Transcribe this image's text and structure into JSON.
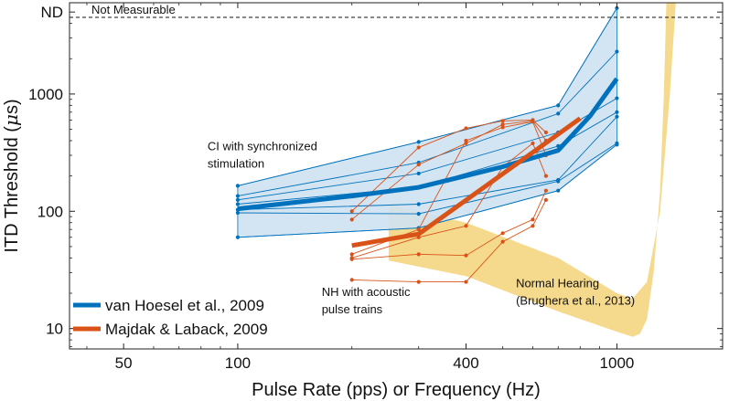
{
  "chart_data": {
    "type": "line",
    "title": "",
    "xlabel": "Pulse Rate (pps) or Frequency (Hz)",
    "ylabel_prefix": "ITD Threshold (",
    "ylabel_mu": "μ",
    "ylabel_suffix": "s)",
    "xscale": "log",
    "yscale": "log",
    "xlim": [
      36,
      1900
    ],
    "ylim": [
      6.7,
      6000
    ],
    "xticks": [
      50,
      100,
      400,
      1000
    ],
    "xtick_labels": [
      "50",
      "100",
      "400",
      "1000"
    ],
    "yticks": [
      10,
      100,
      1000,
      5000
    ],
    "ytick_labels": [
      "10",
      "100",
      "1000",
      "ND"
    ],
    "not_measurable": {
      "value": 4500,
      "label": "Not Measurable"
    },
    "colors": {
      "ci": "#0072bd",
      "ci_band": "#cfe2f1",
      "nh": "#d95319",
      "normal": "#f5d98c"
    },
    "ci_band": {
      "upper": [
        [
          100,
          165
        ],
        [
          300,
          390
        ],
        [
          700,
          800
        ],
        [
          1000,
          5400
        ]
      ],
      "lower": [
        [
          100,
          60
        ],
        [
          300,
          72
        ],
        [
          700,
          150
        ],
        [
          1000,
          370
        ]
      ]
    },
    "ci_subjects": [
      {
        "x": [
          100,
          300,
          700,
          1000
        ],
        "y": [
          165,
          390,
          800,
          5400
        ]
      },
      {
        "x": [
          100,
          300,
          700,
          1000
        ],
        "y": [
          135,
          260,
          680,
          2300
        ]
      },
      {
        "x": [
          100,
          300,
          700,
          1000
        ],
        "y": [
          125,
          210,
          470,
          920
        ]
      },
      {
        "x": [
          100,
          300,
          700,
          1000
        ],
        "y": [
          115,
          160,
          360,
          700
        ]
      },
      {
        "x": [
          100,
          300,
          700,
          1000
        ],
        "y": [
          103,
          115,
          185,
          640
        ]
      },
      {
        "x": [
          100,
          300,
          700,
          1000
        ],
        "y": [
          97,
          95,
          180,
          380
        ]
      },
      {
        "x": [
          100,
          300,
          700,
          1000
        ],
        "y": [
          60,
          72,
          150,
          370
        ]
      }
    ],
    "series": [
      {
        "name": "van Hoesel et al., 2009",
        "x": [
          100,
          200,
          300,
          500,
          700,
          850,
          1000
        ],
        "y": [
          105,
          135,
          160,
          240,
          330,
          650,
          1350
        ]
      },
      {
        "name": "Majdak & Laback, 2009",
        "x": [
          200,
          300,
          800
        ],
        "y": [
          51,
          64,
          620
        ]
      }
    ],
    "nh_subjects": [
      {
        "x": [
          200,
          300,
          400,
          500,
          600,
          650
        ],
        "y": [
          100,
          350,
          510,
          590,
          600,
          470
        ]
      },
      {
        "x": [
          200,
          300,
          400,
          500,
          600,
          650
        ],
        "y": [
          85,
          250,
          380,
          550,
          590,
          400
        ]
      },
      {
        "x": [
          200,
          300,
          400,
          500,
          600,
          650
        ],
        "y": [
          43,
          70,
          400,
          520,
          580,
          300
        ]
      },
      {
        "x": [
          200,
          300,
          400,
          500,
          600,
          650
        ],
        "y": [
          40,
          60,
          75,
          240,
          380,
          200
        ]
      },
      {
        "x": [
          200,
          300,
          400,
          500,
          600,
          650
        ],
        "y": [
          39,
          43,
          42,
          65,
          85,
          150
        ]
      },
      {
        "x": [
          200,
          300,
          400,
          500,
          600,
          650
        ],
        "y": [
          26,
          25,
          25,
          55,
          75,
          125
        ]
      }
    ],
    "normal_hearing_band": {
      "upper": [
        [
          250,
          115
        ],
        [
          400,
          80
        ],
        [
          700,
          40
        ],
        [
          1000,
          20
        ],
        [
          1100,
          18
        ],
        [
          1200,
          25
        ],
        [
          1300,
          100
        ],
        [
          1380,
          1000
        ],
        [
          1430,
          6000
        ]
      ],
      "lower": [
        [
          250,
          38
        ],
        [
          400,
          28
        ],
        [
          700,
          14
        ],
        [
          1000,
          9.4
        ],
        [
          1100,
          8.5
        ],
        [
          1150,
          9
        ],
        [
          1200,
          12
        ],
        [
          1250,
          30
        ],
        [
          1300,
          150
        ],
        [
          1330,
          1000
        ],
        [
          1350,
          6000
        ]
      ]
    },
    "annotations": [
      {
        "lines": [
          "CI with synchronized",
          "stimulation"
        ],
        "x": 100,
        "y": 330
      },
      {
        "lines": [
          "NH with acoustic",
          "pulse trains"
        ],
        "x": 200,
        "y": 19
      },
      {
        "lines": [
          "Normal Hearing",
          "(Brughera et al., 2013)"
        ],
        "x": 560,
        "y": 22.5
      }
    ],
    "legend": {
      "position": "bottom-left",
      "entries": [
        "van Hoesel et al., 2009",
        "Majdak & Laback, 2009"
      ]
    }
  }
}
